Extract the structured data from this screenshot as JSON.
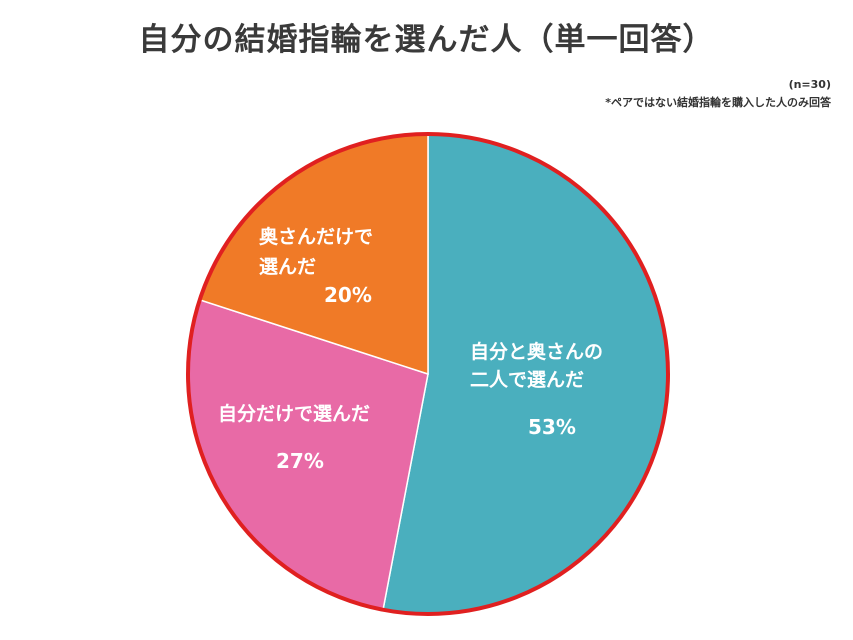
{
  "title": "自分の結婚指輪を選んだ人（単一回答）",
  "sample_size": "(n=30)",
  "footnote": "*ペアではない結婚指輪を購入した人のみ回答",
  "chart_data": {
    "type": "pie",
    "slices": [
      {
        "label_lines": [
          "自分と奥さんの",
          "二人で選んだ"
        ],
        "value": 53,
        "value_label": "53%",
        "color": "#4aafbe"
      },
      {
        "label_lines": [
          "自分だけで選んだ"
        ],
        "value": 27,
        "value_label": "27%",
        "color": "#e86aa6"
      },
      {
        "label_lines": [
          "奥さんだけで",
          "選んだ"
        ],
        "value": 20,
        "value_label": "20%",
        "color": "#f07a27"
      }
    ],
    "highlight_outline_color": "#e02020"
  }
}
